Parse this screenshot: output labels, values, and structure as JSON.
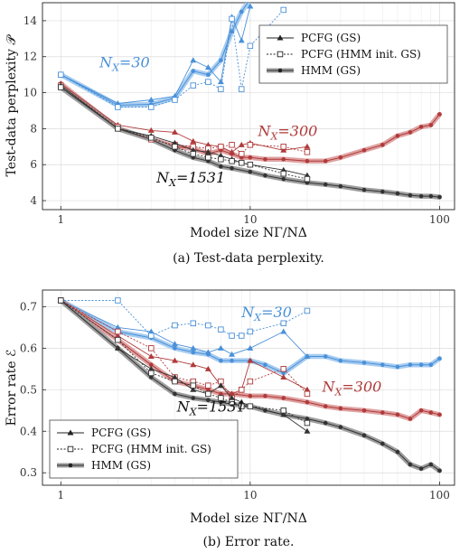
{
  "chart_data": [
    {
      "type": "line",
      "caption": "(a)  Test-data perplexity.",
      "xlabel": "Model size NΓ/NΔ",
      "ylabel": "Test-data perplexity 𝒫",
      "xscale": "log",
      "xlim": [
        0.8,
        120
      ],
      "ylim": [
        3.5,
        15
      ],
      "xticks": [
        1,
        10,
        100
      ],
      "xtick_labels": [
        "1",
        "10",
        "100"
      ],
      "yticks": [
        4,
        6,
        8,
        10,
        12,
        14
      ],
      "ytick_labels": [
        "4",
        "6",
        "8",
        "10",
        "12",
        "14"
      ],
      "grid": true,
      "legend": {
        "placement": "top-right",
        "entries": [
          {
            "label": "PCFG (GS)",
            "style": "pcfg"
          },
          {
            "label": "PCFG (HMM init. GS)",
            "style": "pcfg-init"
          },
          {
            "label": "HMM (GS)",
            "style": "hmm"
          }
        ]
      },
      "annotations": [
        {
          "text": "NX=30",
          "group": "N30",
          "at": [
            1.6,
            11.4
          ]
        },
        {
          "text": "NX=300",
          "group": "N300",
          "at": [
            11,
            7.6
          ]
        },
        {
          "text": "NX=1531",
          "group": "N1531",
          "at": [
            3.2,
            5.0
          ]
        }
      ],
      "series": [
        {
          "group": "N30",
          "style": "pcfg",
          "x": [
            1,
            2,
            3,
            4,
            5,
            6,
            7,
            8,
            9,
            10
          ],
          "y": [
            11.0,
            9.4,
            9.6,
            9.8,
            11.8,
            11.4,
            10.6,
            14.2,
            12.9,
            14.8
          ]
        },
        {
          "group": "N30",
          "style": "pcfg-init",
          "x": [
            1,
            2,
            3,
            4,
            5,
            6,
            7,
            8,
            9,
            10,
            15
          ],
          "y": [
            11.0,
            9.2,
            9.2,
            9.6,
            10.4,
            10.6,
            10.2,
            14.1,
            10.2,
            12.6,
            14.6
          ]
        },
        {
          "group": "N30",
          "style": "hmm",
          "x": [
            1,
            2,
            3,
            4,
            5,
            6,
            7,
            8,
            9,
            10
          ],
          "y": [
            11.0,
            9.3,
            9.35,
            9.7,
            11.2,
            11.0,
            11.8,
            13.4,
            14.5,
            15.2
          ]
        },
        {
          "group": "N300",
          "style": "pcfg",
          "x": [
            1,
            2,
            3,
            4,
            5,
            6,
            7,
            8,
            9,
            10,
            15,
            20
          ],
          "y": [
            10.5,
            8.2,
            7.9,
            7.8,
            7.3,
            7.1,
            7.0,
            6.7,
            7.1,
            7.2,
            6.8,
            7.0
          ]
        },
        {
          "group": "N300",
          "style": "pcfg-init",
          "x": [
            1,
            2,
            3,
            4,
            5,
            6,
            7,
            8,
            9,
            10,
            15,
            20
          ],
          "y": [
            10.4,
            8.1,
            7.4,
            7.1,
            7.0,
            6.9,
            7.0,
            7.1,
            6.6,
            7.1,
            7.0,
            6.7
          ]
        },
        {
          "group": "N300",
          "style": "hmm",
          "x": [
            1,
            2,
            3,
            4,
            5,
            6,
            7,
            8,
            9,
            10,
            12,
            15,
            20,
            25,
            30,
            40,
            50,
            60,
            70,
            80,
            90,
            100
          ],
          "y": [
            10.5,
            8.0,
            7.4,
            7.0,
            6.9,
            6.6,
            6.8,
            6.6,
            6.4,
            6.4,
            6.3,
            6.3,
            6.2,
            6.2,
            6.4,
            6.8,
            7.1,
            7.6,
            7.8,
            8.1,
            8.2,
            8.8
          ]
        },
        {
          "group": "N1531",
          "style": "pcfg",
          "x": [
            1,
            2,
            3,
            4,
            5,
            6,
            7,
            8,
            9,
            10,
            15,
            20
          ],
          "y": [
            10.4,
            8.0,
            7.6,
            7.2,
            6.8,
            6.7,
            6.5,
            6.3,
            6.1,
            6.0,
            5.7,
            5.4
          ]
        },
        {
          "group": "N1531",
          "style": "pcfg-init",
          "x": [
            1,
            2,
            3,
            4,
            5,
            6,
            7,
            8,
            9,
            10,
            15,
            20
          ],
          "y": [
            10.3,
            8.0,
            7.5,
            7.0,
            6.6,
            6.4,
            6.3,
            6.2,
            6.1,
            6.0,
            5.5,
            5.2
          ]
        },
        {
          "group": "N1531",
          "style": "hmm",
          "x": [
            1,
            2,
            3,
            4,
            5,
            6,
            7,
            8,
            10,
            12,
            15,
            20,
            25,
            30,
            40,
            50,
            60,
            70,
            80,
            90,
            100
          ],
          "y": [
            10.3,
            8.0,
            7.4,
            6.8,
            6.4,
            6.2,
            5.9,
            5.8,
            5.6,
            5.4,
            5.2,
            5.0,
            4.9,
            4.8,
            4.6,
            4.5,
            4.4,
            4.3,
            4.25,
            4.25,
            4.2
          ]
        }
      ]
    },
    {
      "type": "line",
      "caption": "(b)  Error rate.",
      "xlabel": "Model size NΓ/NΔ",
      "ylabel": "Error rate ℰ",
      "xscale": "log",
      "xlim": [
        0.8,
        120
      ],
      "ylim": [
        0.27,
        0.74
      ],
      "xticks": [
        1,
        10,
        100
      ],
      "xtick_labels": [
        "1",
        "10",
        "100"
      ],
      "yticks": [
        0.3,
        0.4,
        0.5,
        0.6,
        0.7
      ],
      "ytick_labels": [
        "0.3",
        "0.4",
        "0.5",
        "0.6",
        "0.7"
      ],
      "grid": true,
      "legend": {
        "placement": "bottom-left",
        "entries": [
          {
            "label": "PCFG (GS)",
            "style": "pcfg"
          },
          {
            "label": "PCFG (HMM init. GS)",
            "style": "pcfg-init"
          },
          {
            "label": "HMM (GS)",
            "style": "hmm"
          }
        ]
      },
      "annotations": [
        {
          "text": "NX=30",
          "group": "N30",
          "at": [
            9,
            0.675
          ]
        },
        {
          "text": "NX=300",
          "group": "N300",
          "at": [
            24,
            0.495
          ]
        },
        {
          "text": "NX=1531",
          "group": "N1531",
          "at": [
            4.1,
            0.447
          ]
        }
      ],
      "series": [
        {
          "group": "N30",
          "style": "pcfg",
          "x": [
            1,
            2,
            3,
            4,
            5,
            6,
            7,
            8,
            10,
            15,
            20
          ],
          "y": [
            0.715,
            0.65,
            0.64,
            0.61,
            0.6,
            0.59,
            0.6,
            0.585,
            0.6,
            0.64,
            0.58
          ]
        },
        {
          "group": "N30",
          "style": "pcfg-init",
          "x": [
            1,
            2,
            3,
            4,
            5,
            6,
            7,
            8,
            9,
            10,
            15,
            20
          ],
          "y": [
            0.715,
            0.715,
            0.63,
            0.655,
            0.66,
            0.655,
            0.645,
            0.63,
            0.63,
            0.64,
            0.66,
            0.69
          ]
        },
        {
          "group": "N30",
          "style": "hmm",
          "x": [
            1,
            2,
            3,
            4,
            5,
            6,
            7,
            8,
            10,
            12,
            15,
            20,
            25,
            30,
            40,
            50,
            60,
            70,
            80,
            90,
            100
          ],
          "y": [
            0.715,
            0.64,
            0.625,
            0.6,
            0.59,
            0.585,
            0.57,
            0.57,
            0.57,
            0.56,
            0.54,
            0.58,
            0.58,
            0.57,
            0.565,
            0.56,
            0.555,
            0.56,
            0.56,
            0.56,
            0.575
          ]
        },
        {
          "group": "N300",
          "style": "pcfg",
          "x": [
            1,
            2,
            3,
            4,
            5,
            6,
            7,
            8,
            9,
            10,
            15,
            20
          ],
          "y": [
            0.715,
            0.63,
            0.58,
            0.57,
            0.56,
            0.55,
            0.51,
            0.49,
            0.5,
            0.57,
            0.53,
            0.5
          ]
        },
        {
          "group": "N300",
          "style": "pcfg-init",
          "x": [
            1,
            2,
            3,
            4,
            5,
            6,
            7,
            8,
            9,
            10,
            15,
            20
          ],
          "y": [
            0.715,
            0.64,
            0.6,
            0.53,
            0.52,
            0.51,
            0.52,
            0.48,
            0.5,
            0.52,
            0.55,
            0.49
          ]
        },
        {
          "group": "N300",
          "style": "hmm",
          "x": [
            1,
            2,
            3,
            4,
            5,
            6,
            7,
            8,
            10,
            12,
            15,
            20,
            25,
            30,
            40,
            50,
            60,
            70,
            80,
            90,
            100
          ],
          "y": [
            0.715,
            0.62,
            0.56,
            0.52,
            0.51,
            0.5,
            0.49,
            0.49,
            0.485,
            0.485,
            0.48,
            0.47,
            0.46,
            0.455,
            0.45,
            0.445,
            0.44,
            0.43,
            0.45,
            0.445,
            0.44
          ]
        },
        {
          "group": "N1531",
          "style": "pcfg",
          "x": [
            1,
            2,
            3,
            4,
            5,
            6,
            7,
            8,
            9,
            10,
            15,
            20
          ],
          "y": [
            0.715,
            0.6,
            0.55,
            0.53,
            0.5,
            0.49,
            0.51,
            0.48,
            0.47,
            0.46,
            0.44,
            0.4
          ]
        },
        {
          "group": "N1531",
          "style": "pcfg-init",
          "x": [
            1,
            2,
            3,
            4,
            5,
            6,
            7,
            8,
            9,
            10,
            15,
            20
          ],
          "y": [
            0.715,
            0.62,
            0.54,
            0.52,
            0.51,
            0.49,
            0.48,
            0.47,
            0.46,
            0.46,
            0.45,
            0.42
          ]
        },
        {
          "group": "N1531",
          "style": "hmm",
          "x": [
            1,
            2,
            3,
            4,
            5,
            6,
            7,
            8,
            10,
            12,
            15,
            20,
            25,
            30,
            40,
            50,
            60,
            70,
            80,
            90,
            100
          ],
          "y": [
            0.715,
            0.6,
            0.53,
            0.49,
            0.48,
            0.475,
            0.47,
            0.465,
            0.46,
            0.45,
            0.44,
            0.43,
            0.42,
            0.41,
            0.39,
            0.37,
            0.35,
            0.32,
            0.31,
            0.32,
            0.305
          ]
        }
      ]
    }
  ],
  "group_colors": {
    "N30": "#4a90d9",
    "N300": "#b03a3a",
    "N1531": "#333333"
  },
  "hmm_band_colors": {
    "N30": "#a8cdf0",
    "N300": "#dfa2a2",
    "N1531": "#9e9e9e"
  }
}
